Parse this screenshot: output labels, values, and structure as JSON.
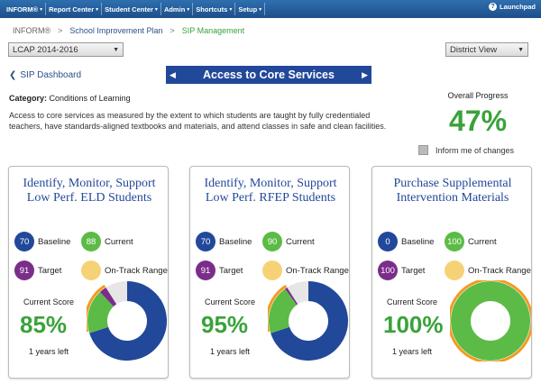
{
  "nav": {
    "items": [
      "INFORM®",
      "Report Center",
      "Student Center",
      "Admin",
      "Shortcuts",
      "Setup"
    ],
    "launchpad": "Launchpad"
  },
  "breadcrumb": {
    "root": "INFORM®",
    "plan": "School Improvement Plan",
    "current": "SIP Management",
    "sep": ">"
  },
  "year_select": "LCAP 2014-2016",
  "view_select": "District View",
  "dashboard_link": "SIP Dashboard",
  "title": "Access to Core Services",
  "category": {
    "label": "Category:",
    "value": "Conditions of Learning"
  },
  "description": "Access to core services as measured by the extent to which students are taught by fully credentialed teachers, have standards-aligned textbooks and materials, and attend classes in safe and clean facilities.",
  "overall": {
    "label": "Overall Progress",
    "value": "47%"
  },
  "inform_label": "Inform me of changes",
  "labels": {
    "baseline": "Baseline",
    "current": "Current",
    "target": "Target",
    "range": "On-Track Range",
    "current_score": "Current Score"
  },
  "colors": {
    "baseline": "#22489a",
    "current": "#5cbb47",
    "target": "#7b2d8a",
    "range": "#f6d277",
    "remaining": "#e6e6e6",
    "accent_green": "#3aa23a",
    "orange": "#f39a1e"
  },
  "cards": [
    {
      "title": "Identify, Monitor, Support Low Perf. ELD Students",
      "baseline": "70",
      "current": "88",
      "target": "91",
      "score": "85%",
      "years_left": "1 years left",
      "ring": {
        "baseline": 70,
        "current": 18,
        "target": 3,
        "remaining": 9
      }
    },
    {
      "title": "Identify, Monitor, Support Low Perf. RFEP Students",
      "baseline": "70",
      "current": "90",
      "target": "91",
      "score": "95%",
      "years_left": "1 years left",
      "ring": {
        "baseline": 70,
        "current": 20,
        "target": 1,
        "remaining": 9
      }
    },
    {
      "title": "Purchase Supplemental Intervention Materials",
      "baseline": "0",
      "current": "100",
      "target": "100",
      "score": "100%",
      "years_left": "1 years left",
      "ring": {
        "baseline": 0,
        "current": 100,
        "target": 0,
        "remaining": 0
      }
    }
  ]
}
